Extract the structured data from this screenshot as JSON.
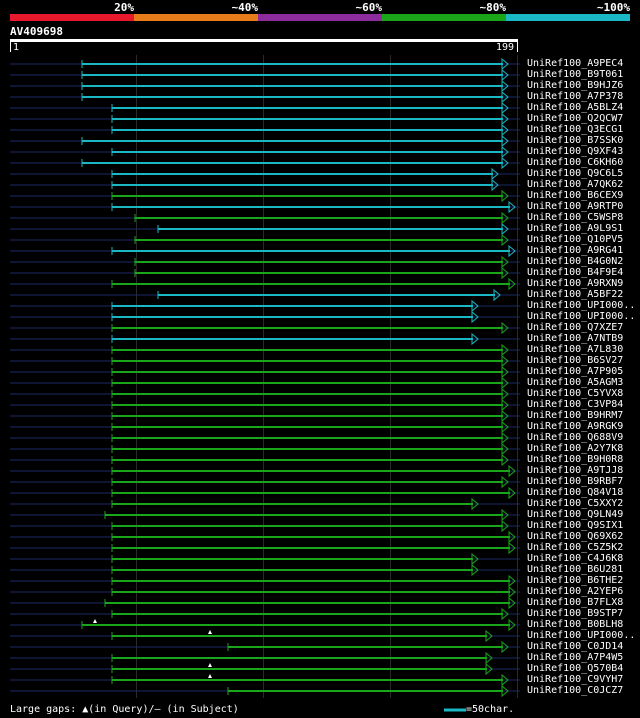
{
  "scale": {
    "labels": [
      "20%",
      "~40%",
      "~60%",
      "~80%",
      "~100%"
    ],
    "colors": [
      "#e8192c",
      "#e87b1a",
      "#8d2c9c",
      "#1aa51a",
      "#1ab8c4"
    ]
  },
  "query": {
    "id": "AV409698",
    "start": "1",
    "end": "199"
  },
  "hits": [
    {
      "label": "UniRef100_A9PEC4",
      "color": "cyan"
    },
    {
      "label": "UniRef100_B9T061",
      "color": "cyan"
    },
    {
      "label": "UniRef100_B9HJZ6",
      "color": "cyan"
    },
    {
      "label": "UniRef100_A7P378",
      "color": "cyan"
    },
    {
      "label": "UniRef100_A5BLZ4",
      "color": "cyan"
    },
    {
      "label": "UniRef100_Q2QCW7",
      "color": "cyan"
    },
    {
      "label": "UniRef100_Q3ECG1",
      "color": "cyan"
    },
    {
      "label": "UniRef100_B7SSK0",
      "color": "cyan"
    },
    {
      "label": "UniRef100_Q9XF43",
      "color": "cyan"
    },
    {
      "label": "UniRef100_C6KH60",
      "color": "cyan"
    },
    {
      "label": "UniRef100_Q9C6L5",
      "color": "cyan"
    },
    {
      "label": "UniRef100_A7QK62",
      "color": "cyan"
    },
    {
      "label": "UniRef100_B6CEX9",
      "color": "green"
    },
    {
      "label": "UniRef100_A9RTP0",
      "color": "cyan"
    },
    {
      "label": "UniRef100_C5WSP8",
      "color": "green"
    },
    {
      "label": "UniRef100_A9L9S1",
      "color": "cyan"
    },
    {
      "label": "UniRef100_Q10PV5",
      "color": "green"
    },
    {
      "label": "UniRef100_A9RG41",
      "color": "cyan"
    },
    {
      "label": "UniRef100_B4G0N2",
      "color": "green"
    },
    {
      "label": "UniRef100_B4F9E4",
      "color": "green"
    },
    {
      "label": "UniRef100_A9RXN9",
      "color": "green"
    },
    {
      "label": "UniRef100_A5BF22",
      "color": "cyan"
    },
    {
      "label": "UniRef100_UPI000..",
      "color": "cyan"
    },
    {
      "label": "UniRef100_UPI000..",
      "color": "cyan"
    },
    {
      "label": "UniRef100_Q7XZE7",
      "color": "green"
    },
    {
      "label": "UniRef100_A7NTB9",
      "color": "cyan"
    },
    {
      "label": "UniRef100_A7L830",
      "color": "green"
    },
    {
      "label": "UniRef100_B6SV27",
      "color": "green"
    },
    {
      "label": "UniRef100_A7P905",
      "color": "green"
    },
    {
      "label": "UniRef100_A5AGM3",
      "color": "green"
    },
    {
      "label": "UniRef100_C5YVX8",
      "color": "green"
    },
    {
      "label": "UniRef100_C3VP84",
      "color": "green"
    },
    {
      "label": "UniRef100_B9HRM7",
      "color": "green"
    },
    {
      "label": "UniRef100_A9RGK9",
      "color": "green"
    },
    {
      "label": "UniRef100_Q688V9",
      "color": "green"
    },
    {
      "label": "UniRef100_A2Y7K8",
      "color": "green"
    },
    {
      "label": "UniRef100_B9H0R8",
      "color": "green"
    },
    {
      "label": "UniRef100_A9TJJ8",
      "color": "green"
    },
    {
      "label": "UniRef100_B9RBF7",
      "color": "green"
    },
    {
      "label": "UniRef100_Q84V18",
      "color": "green"
    },
    {
      "label": "UniRef100_C5XXY2",
      "color": "green"
    },
    {
      "label": "UniRef100_Q9LN49",
      "color": "green"
    },
    {
      "label": "UniRef100_Q9SIX1",
      "color": "green"
    },
    {
      "label": "UniRef100_Q69X62",
      "color": "green"
    },
    {
      "label": "UniRef100_C5Z5K2",
      "color": "green"
    },
    {
      "label": "UniRef100_C4J6K8",
      "color": "green"
    },
    {
      "label": "UniRef100_B6U281",
      "color": "green"
    },
    {
      "label": "UniRef100_B6THE2",
      "color": "green"
    },
    {
      "label": "UniRef100_A2YEP6",
      "color": "green"
    },
    {
      "label": "UniRef100_B7FLX8",
      "color": "green"
    },
    {
      "label": "UniRef100_B9STP7",
      "color": "green"
    },
    {
      "label": "UniRef100_B0BLH8",
      "color": "green"
    },
    {
      "label": "UniRef100_UPI000..",
      "color": "green"
    },
    {
      "label": "UniRef100_C0JD14",
      "color": "green"
    },
    {
      "label": "UniRef100_A7P4W5",
      "color": "green"
    },
    {
      "label": "UniRef100_Q570B4",
      "color": "green"
    },
    {
      "label": "UniRef100_C9VYH7",
      "color": "green"
    },
    {
      "label": "UniRef100_C0JCZ7",
      "color": "green"
    }
  ],
  "legend": {
    "gaps_text": "Large gaps: ▲(in Query)/– (in Subject)",
    "scale_text": "=50char."
  }
}
